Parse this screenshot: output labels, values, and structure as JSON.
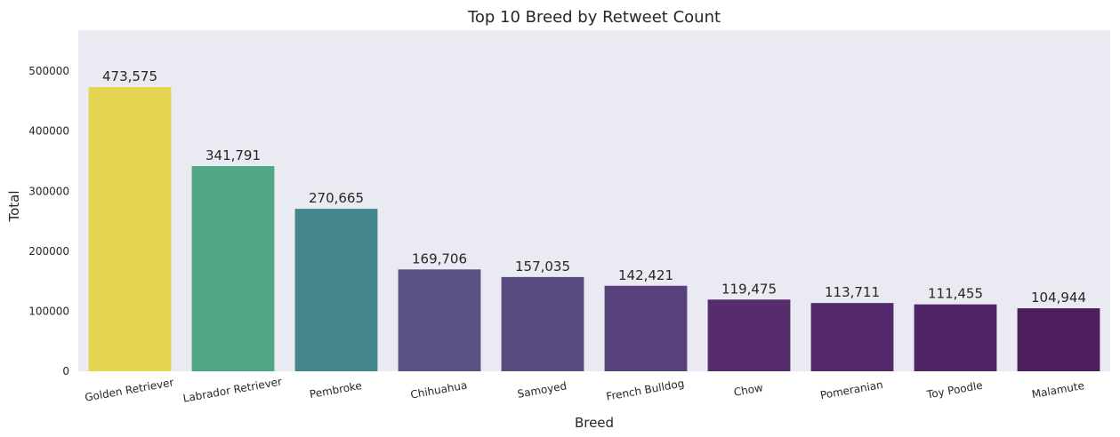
{
  "chart_data": {
    "type": "bar",
    "title": "Top 10 Breed by Retweet Count",
    "xlabel": "Breed",
    "ylabel": "Total",
    "categories": [
      "Golden Retriever",
      "Labrador Retriever",
      "Pembroke",
      "Chihuahua",
      "Samoyed",
      "French Bulldog",
      "Chow",
      "Pomeranian",
      "Toy Poodle",
      "Malamute"
    ],
    "values": [
      473575,
      341791,
      270665,
      169706,
      157035,
      142421,
      119475,
      113711,
      111455,
      104944
    ],
    "value_labels": [
      "473,575",
      "341,791",
      "270,665",
      "169,706",
      "157,035",
      "142,421",
      "119,475",
      "113,711",
      "111,455",
      "104,944"
    ],
    "colors": [
      "#e3d452",
      "#4fa883",
      "#43858a",
      "#5b5183",
      "#5a4c80",
      "#59417b",
      "#562c6c",
      "#53286a",
      "#512465",
      "#4c1f5c"
    ],
    "yticks": [
      0,
      100000,
      200000,
      300000,
      400000,
      500000
    ],
    "ylim": [
      0,
      568290
    ],
    "grid": false,
    "background": "#eaeaf2"
  }
}
